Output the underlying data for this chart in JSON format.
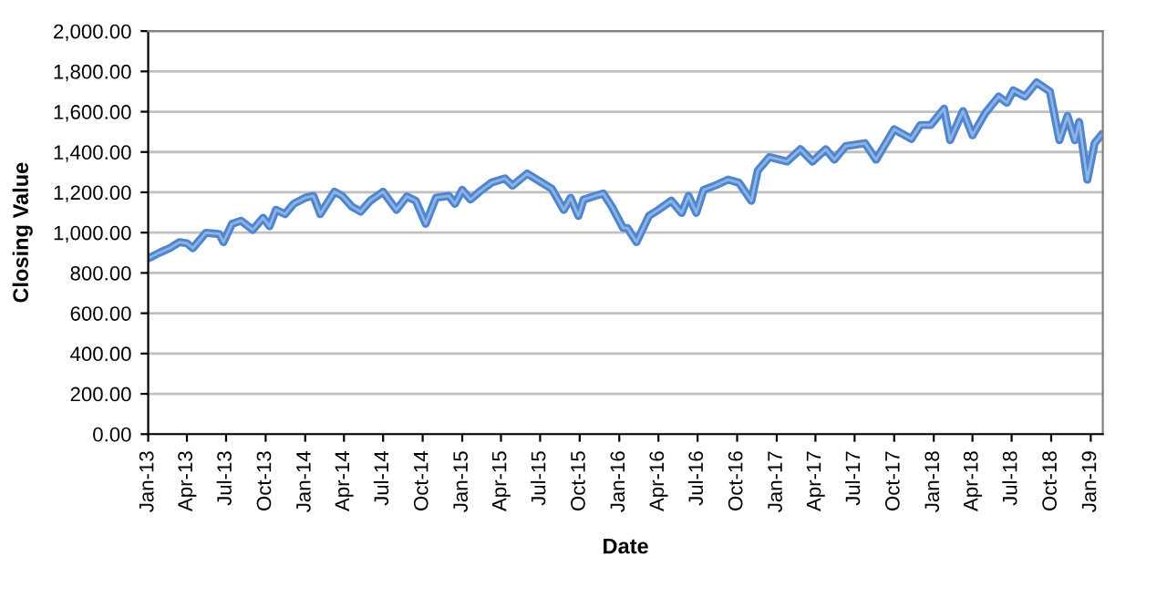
{
  "chart_data": {
    "type": "line",
    "xlabel": "Date",
    "ylabel": "Closing Value",
    "grid": "y",
    "legend": false,
    "marker": "none",
    "line_style": "solid",
    "ylim": [
      0,
      2000
    ],
    "yticks": [
      {
        "value": 0,
        "label": "0.00"
      },
      {
        "value": 200,
        "label": "200.00"
      },
      {
        "value": 400,
        "label": "400.00"
      },
      {
        "value": 600,
        "label": "600.00"
      },
      {
        "value": 800,
        "label": "800.00"
      },
      {
        "value": 1000,
        "label": "1,000.00"
      },
      {
        "value": 1200,
        "label": "1,200.00"
      },
      {
        "value": 1400,
        "label": "1,400.00"
      },
      {
        "value": 1600,
        "label": "1,600.00"
      },
      {
        "value": 1800,
        "label": "1,800.00"
      },
      {
        "value": 2000,
        "label": "2,000.00"
      }
    ],
    "xlim": [
      "2013-01-01",
      "2019-01-29"
    ],
    "xticks": [
      {
        "value": "2013-01-01",
        "label": "Jan-13"
      },
      {
        "value": "2013-04-01",
        "label": "Apr-13"
      },
      {
        "value": "2013-07-01",
        "label": "Jul-13"
      },
      {
        "value": "2013-10-01",
        "label": "Oct-13"
      },
      {
        "value": "2014-01-01",
        "label": "Jan-14"
      },
      {
        "value": "2014-04-01",
        "label": "Apr-14"
      },
      {
        "value": "2014-07-01",
        "label": "Jul-14"
      },
      {
        "value": "2014-10-01",
        "label": "Oct-14"
      },
      {
        "value": "2015-01-01",
        "label": "Jan-15"
      },
      {
        "value": "2015-04-01",
        "label": "Apr-15"
      },
      {
        "value": "2015-07-01",
        "label": "Jul-15"
      },
      {
        "value": "2015-10-01",
        "label": "Oct-15"
      },
      {
        "value": "2016-01-01",
        "label": "Jan-16"
      },
      {
        "value": "2016-04-01",
        "label": "Apr-16"
      },
      {
        "value": "2016-07-01",
        "label": "Jul-16"
      },
      {
        "value": "2016-10-01",
        "label": "Oct-16"
      },
      {
        "value": "2017-01-01",
        "label": "Jan-17"
      },
      {
        "value": "2017-04-01",
        "label": "Apr-17"
      },
      {
        "value": "2017-07-01",
        "label": "Jul-17"
      },
      {
        "value": "2017-10-01",
        "label": "Oct-17"
      },
      {
        "value": "2018-01-01",
        "label": "Jan-18"
      },
      {
        "value": "2018-04-01",
        "label": "Apr-18"
      },
      {
        "value": "2018-07-01",
        "label": "Jul-18"
      },
      {
        "value": "2018-10-01",
        "label": "Oct-18"
      },
      {
        "value": "2019-01-01",
        "label": "Jan-19"
      }
    ],
    "series": [
      {
        "color": "#4f86cf",
        "x": [
          "2013-01-01",
          "2013-01-29",
          "2013-02-20",
          "2013-03-15",
          "2013-04-01",
          "2013-04-15",
          "2013-05-15",
          "2013-06-15",
          "2013-06-25",
          "2013-07-15",
          "2013-08-05",
          "2013-09-01",
          "2013-09-25",
          "2013-10-10",
          "2013-10-25",
          "2013-11-15",
          "2013-12-05",
          "2014-01-01",
          "2014-01-20",
          "2014-02-05",
          "2014-03-10",
          "2014-03-28",
          "2014-04-20",
          "2014-05-10",
          "2014-06-01",
          "2014-07-01",
          "2014-08-01",
          "2014-08-25",
          "2014-09-15",
          "2014-10-08",
          "2014-11-01",
          "2014-12-01",
          "2014-12-15",
          "2015-01-01",
          "2015-01-20",
          "2015-02-10",
          "2015-03-10",
          "2015-04-10",
          "2015-04-28",
          "2015-06-01",
          "2015-07-05",
          "2015-07-28",
          "2015-08-25",
          "2015-09-10",
          "2015-09-28",
          "2015-10-10",
          "2015-11-05",
          "2015-11-25",
          "2015-12-15",
          "2016-01-10",
          "2016-01-20",
          "2016-02-10",
          "2016-03-10",
          "2016-04-01",
          "2016-05-01",
          "2016-05-25",
          "2016-06-10",
          "2016-06-28",
          "2016-07-15",
          "2016-08-10",
          "2016-09-10",
          "2016-10-05",
          "2016-11-03",
          "2016-11-18",
          "2016-12-15",
          "2017-01-25",
          "2017-02-25",
          "2017-03-25",
          "2017-04-25",
          "2017-05-15",
          "2017-06-10",
          "2017-07-25",
          "2017-08-20",
          "2017-10-01",
          "2017-11-10",
          "2017-12-01",
          "2017-12-25",
          "2018-01-25",
          "2018-02-08",
          "2018-03-10",
          "2018-04-01",
          "2018-05-01",
          "2018-06-01",
          "2018-06-20",
          "2018-07-05",
          "2018-08-01",
          "2018-08-28",
          "2018-09-28",
          "2018-10-20",
          "2018-11-08",
          "2018-11-25",
          "2018-12-05",
          "2018-12-24",
          "2019-01-10",
          "2019-01-25"
        ],
        "values": [
          872,
          902,
          923,
          953,
          947,
          923,
          999,
          993,
          953,
          1044,
          1059,
          1014,
          1074,
          1032,
          1113,
          1092,
          1143,
          1173,
          1182,
          1092,
          1203,
          1182,
          1128,
          1104,
          1158,
          1203,
          1113,
          1179,
          1158,
          1044,
          1173,
          1182,
          1143,
          1212,
          1164,
          1203,
          1248,
          1269,
          1233,
          1293,
          1248,
          1218,
          1113,
          1173,
          1083,
          1164,
          1182,
          1194,
          1128,
          1023,
          1023,
          953,
          1083,
          1113,
          1158,
          1098,
          1182,
          1098,
          1212,
          1233,
          1263,
          1248,
          1158,
          1308,
          1375,
          1353,
          1414,
          1353,
          1414,
          1362,
          1429,
          1444,
          1362,
          1513,
          1465,
          1534,
          1534,
          1615,
          1459,
          1603,
          1483,
          1594,
          1675,
          1645,
          1706,
          1675,
          1745,
          1700,
          1459,
          1579,
          1459,
          1549,
          1263,
          1444,
          1483
        ]
      }
    ]
  }
}
